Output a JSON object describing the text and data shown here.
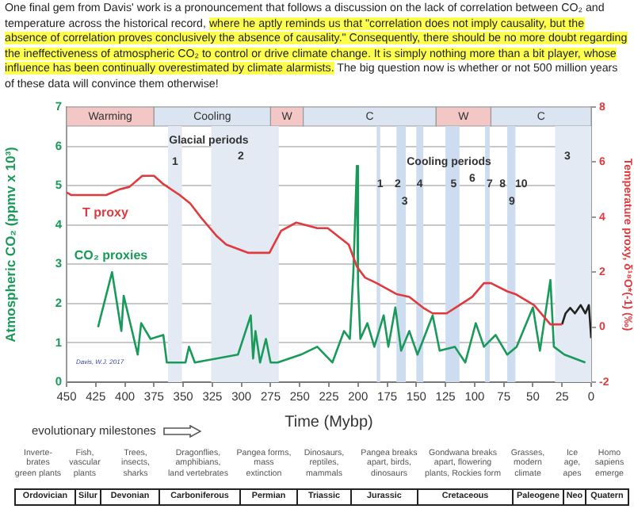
{
  "chart_data": {
    "type": "line",
    "xlabel": "Time (Mybp)",
    "ylabel": "Atmospheric CO₂ (ppmv x 10³)",
    "y2label": "Temperature proxy, δ¹⁸O*(-1) (‰)",
    "xlim": [
      450,
      0
    ],
    "xticks": [
      450,
      425,
      400,
      375,
      350,
      325,
      300,
      275,
      250,
      225,
      200,
      175,
      150,
      125,
      100,
      75,
      50,
      25,
      0
    ],
    "ylim": [
      0,
      7
    ],
    "yticks": [
      0,
      1,
      2,
      3,
      4,
      5,
      6,
      7
    ],
    "y2lim": [
      -2,
      8
    ],
    "y2ticks": [
      -2,
      0,
      2,
      4,
      6,
      8
    ],
    "grid": "y",
    "legend": false,
    "marker": "none",
    "line_style": "solid",
    "series": [
      {
        "name": "T proxy",
        "color": "#e0393e",
        "axis": "y2",
        "x": [
          450,
          446,
          416,
          405,
          396,
          385,
          375,
          367,
          353,
          344,
          335,
          321,
          313,
          294,
          285,
          276,
          266,
          253,
          235,
          226,
          208,
          201,
          194,
          184,
          167,
          156,
          144,
          136,
          124,
          113,
          102,
          92,
          86,
          72,
          65,
          49,
          35,
          25
        ],
        "values": [
          4.9,
          4.8,
          4.8,
          5.0,
          5.1,
          5.5,
          5.5,
          5.2,
          4.8,
          4.5,
          4.0,
          3.3,
          3.0,
          2.7,
          2.7,
          2.7,
          3.5,
          3.8,
          3.6,
          3.6,
          3.0,
          2.2,
          1.8,
          1.6,
          1.2,
          1.1,
          0.7,
          0.5,
          0.5,
          0.8,
          1.1,
          1.6,
          1.6,
          1.3,
          1.2,
          0.8,
          0.1,
          0.1
        ]
      },
      {
        "name": "CO₂ proxies",
        "color": "#1a9a5a",
        "x": [
          423,
          411,
          403,
          401,
          389,
          386,
          378,
          367,
          364,
          348,
          345,
          340,
          303,
          292,
          290,
          288,
          284,
          279,
          275,
          269,
          249,
          235,
          222,
          212,
          207,
          204,
          201,
          200,
          198,
          192,
          186,
          178,
          174,
          168,
          163,
          156,
          149,
          136,
          130,
          117,
          108,
          99,
          92,
          82,
          72,
          64,
          50,
          44,
          35,
          32,
          23,
          5
        ],
        "values": [
          1.4,
          2.8,
          1.3,
          2.2,
          0.7,
          1.5,
          1.1,
          1.2,
          0.5,
          0.5,
          0.9,
          0.5,
          0.7,
          1.7,
          0.6,
          1.3,
          0.5,
          1.1,
          0.5,
          0.5,
          0.7,
          0.9,
          0.5,
          1.3,
          1.1,
          2.8,
          5.5,
          2.5,
          1.1,
          1.5,
          0.9,
          1.7,
          0.9,
          1.9,
          0.8,
          1.3,
          0.7,
          1.7,
          0.8,
          0.9,
          0.5,
          1.5,
          0.9,
          1.2,
          0.7,
          0.9,
          1.9,
          0.8,
          2.6,
          0.9,
          0.7,
          0.5
        ]
      },
      {
        "color": "#222222",
        "axis": "y2",
        "x": [
          25,
          22,
          18,
          14,
          9,
          5,
          2,
          0
        ],
        "values": [
          0.1,
          0.5,
          0.7,
          0.5,
          0.8,
          0.5,
          0.8,
          -0.4
        ]
      }
    ],
    "bands": [
      {
        "axis": "x",
        "from": 450,
        "to": 375,
        "label": "Warming",
        "color": "#f4c7c7"
      },
      {
        "axis": "x",
        "from": 375,
        "to": 275,
        "label": "Cooling",
        "color": "#dbe5f1"
      },
      {
        "axis": "x",
        "from": 275,
        "to": 247,
        "label": "W",
        "color": "#f4c7c7"
      },
      {
        "axis": "x",
        "from": 247,
        "to": 133,
        "label": "C",
        "color": "#dbe5f1"
      },
      {
        "axis": "x",
        "from": 133,
        "to": 86,
        "label": "W",
        "color": "#f4c7c7"
      },
      {
        "axis": "x",
        "from": 86,
        "to": 0,
        "label": "C",
        "color": "#dbe5f1"
      },
      {
        "axis": "x",
        "from": 363,
        "to": 351,
        "color": "#e3eaf3"
      },
      {
        "axis": "x",
        "from": 326,
        "to": 268,
        "color": "#e3eaf3"
      },
      {
        "axis": "x",
        "from": 31,
        "to": 0,
        "color": "#e3eaf3"
      },
      {
        "axis": "x",
        "from": 184,
        "to": 181,
        "color": "#cddcee"
      },
      {
        "axis": "x",
        "from": 167,
        "to": 159,
        "color": "#cddcee"
      },
      {
        "axis": "x",
        "from": 150,
        "to": 144,
        "color": "#cddcee"
      },
      {
        "axis": "x",
        "from": 125,
        "to": 113,
        "color": "#cddcee"
      },
      {
        "axis": "x",
        "from": 91,
        "to": 87,
        "color": "#cddcee"
      },
      {
        "axis": "x",
        "from": 72,
        "to": 65,
        "color": "#cddcee"
      }
    ],
    "annotations": [
      "One final gem from Davis' work is a pronouncement that follows a discussion on the lack of correlation between CO₂ and temperature across the historical record, ",
      "where he aptly reminds us that \"correlation does not imply causality, but the absence of correlation proves conclusively the absence of causality.\" Consequently, there should be no more doubt regarding the ineffectiveness of atmospheric CO₂ to control or drive climate change. It is simply nothing more than a bit player, whose influence has been continually overestimated by climate alarmists.",
      " The big question now is whether or not 500 million years of these data will convince them otherwise!",
      "evolutionary milestones",
      "Inverte-\nbrates\ngreen plants",
      "Fish,\nvascular\nplants",
      "Trees,\ninsects,\nsharks",
      "Dragonflies,\namphibians,\nland vertebrates",
      "Pangea forms,\nmass\nextinction",
      "Dinosaurs,\nreptiles,\nmammals",
      "Pangea breaks\napart, birds,\ndinosaurs",
      "Gondwana breaks\napart, flowering\nplants, Rockies form",
      "Grasses,\nmodern\nclimate",
      "Ice\nage,\napes",
      "Homo\nsapiens\nemerge",
      "Ordovician",
      "Silur",
      "Devonian",
      "Carboniferous",
      "Permian",
      "Triassic",
      "Jurassic",
      "Cretaceous",
      "Paleogene",
      "Neo",
      "Quatern",
      "2",
      "3",
      "6",
      "Davis, W.J. 2017",
      {
        "text": "Glacial periods",
        "x": 328,
        "y": 6.15
      },
      {
        "text": "1",
        "x": 357,
        "y": 5.6
      },
      {
        "text": "Cooling periods",
        "x": 122,
        "y": 5.6
      },
      {
        "text": "1",
        "x": 181,
        "y": 5.05
      },
      {
        "text": "2",
        "x": 166,
        "y": 5.05
      },
      {
        "text": "4",
        "x": 147,
        "y": 5.05
      },
      {
        "text": "5",
        "x": 118,
        "y": 5.05
      },
      {
        "text": "7",
        "x": 87,
        "y": 5.05
      },
      {
        "text": "8",
        "x": 76,
        "y": 5.05
      },
      {
        "text": "10",
        "x": 60,
        "y": 5.05
      },
      {
        "text": "3",
        "x": 160,
        "y": 4.6
      },
      {
        "text": "9",
        "x": 68,
        "y": 4.6
      }
    ]
  }
}
